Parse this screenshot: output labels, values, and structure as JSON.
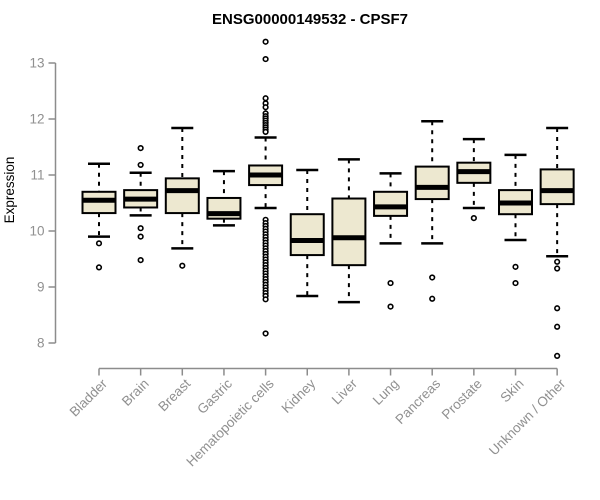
{
  "page": {
    "background": "#ffffff"
  },
  "chart_data": {
    "type": "boxplot",
    "title": "ENSG00000149532 - CPSF7",
    "ylabel": "Expression",
    "xlabel": "",
    "yticks": [
      8,
      9,
      10,
      11,
      12,
      13
    ],
    "ylim": [
      7.6,
      13.5
    ],
    "grid": false,
    "legend": "none",
    "colors": {
      "box_fill": "#ede8d0",
      "box_border": "#000000",
      "median": "#000000",
      "whisker": "#000000",
      "outlier": "#000000",
      "axis": "#8c8c8c",
      "tick_label": "#909090",
      "title": "#000000"
    },
    "categories": [
      "Bladder",
      "Brain",
      "Breast",
      "Gastric",
      "Hematopoietic cells",
      "Kidney",
      "Liver",
      "Lung",
      "Pancreas",
      "Prostate",
      "Skin",
      "Unknown / Other"
    ],
    "series": [
      {
        "category": "Bladder",
        "whisker_low": 9.9,
        "q1": 10.32,
        "median": 10.55,
        "q3": 10.7,
        "whisker_high": 11.2,
        "outliers": [
          9.78,
          9.35
        ]
      },
      {
        "category": "Brain",
        "whisker_low": 10.28,
        "q1": 10.42,
        "median": 10.57,
        "q3": 10.73,
        "whisker_high": 11.04,
        "outliers": [
          11.48,
          11.18,
          10.05,
          9.9,
          9.48
        ]
      },
      {
        "category": "Breast",
        "whisker_low": 9.69,
        "q1": 10.32,
        "median": 10.72,
        "q3": 10.94,
        "whisker_high": 11.84,
        "outliers": [
          9.38
        ]
      },
      {
        "category": "Gastric",
        "whisker_low": 10.1,
        "q1": 10.22,
        "median": 10.31,
        "q3": 10.59,
        "whisker_high": 11.07,
        "outliers": []
      },
      {
        "category": "Hematopoietic cells",
        "whisker_low": 10.41,
        "q1": 10.82,
        "median": 11.0,
        "q3": 11.17,
        "whisker_high": 11.67,
        "outliers": [
          13.38,
          13.07,
          12.37,
          12.28,
          12.21,
          12.1,
          12.05,
          12.01,
          11.97,
          11.93,
          11.89,
          11.85,
          11.81,
          11.77,
          10.2,
          10.14,
          10.09,
          10.04,
          9.99,
          9.94,
          9.89,
          9.84,
          9.79,
          9.74,
          9.69,
          9.64,
          9.59,
          9.54,
          9.49,
          9.44,
          9.39,
          9.34,
          9.29,
          9.24,
          9.19,
          9.14,
          9.09,
          9.04,
          8.99,
          8.94,
          8.89,
          8.84,
          8.78,
          8.17
        ]
      },
      {
        "category": "Kidney",
        "whisker_low": 8.84,
        "q1": 9.57,
        "median": 9.83,
        "q3": 10.3,
        "whisker_high": 11.09,
        "outliers": []
      },
      {
        "category": "Liver",
        "whisker_low": 8.73,
        "q1": 9.39,
        "median": 9.88,
        "q3": 10.58,
        "whisker_high": 11.28,
        "outliers": []
      },
      {
        "category": "Lung",
        "whisker_low": 9.78,
        "q1": 10.27,
        "median": 10.43,
        "q3": 10.7,
        "whisker_high": 11.03,
        "outliers": [
          9.07,
          8.65
        ]
      },
      {
        "category": "Pancreas",
        "whisker_low": 9.78,
        "q1": 10.57,
        "median": 10.78,
        "q3": 11.15,
        "whisker_high": 11.96,
        "outliers": [
          9.17,
          8.79
        ]
      },
      {
        "category": "Prostate",
        "whisker_low": 10.41,
        "q1": 10.86,
        "median": 11.06,
        "q3": 11.22,
        "whisker_high": 11.64,
        "outliers": [
          10.23
        ]
      },
      {
        "category": "Skin",
        "whisker_low": 9.84,
        "q1": 10.3,
        "median": 10.5,
        "q3": 10.73,
        "whisker_high": 11.36,
        "outliers": [
          9.36,
          9.07
        ]
      },
      {
        "category": "Unknown / Other",
        "whisker_low": 9.55,
        "q1": 10.48,
        "median": 10.72,
        "q3": 11.1,
        "whisker_high": 11.84,
        "outliers": [
          9.45,
          9.33,
          8.62,
          8.29,
          7.77
        ]
      }
    ]
  }
}
